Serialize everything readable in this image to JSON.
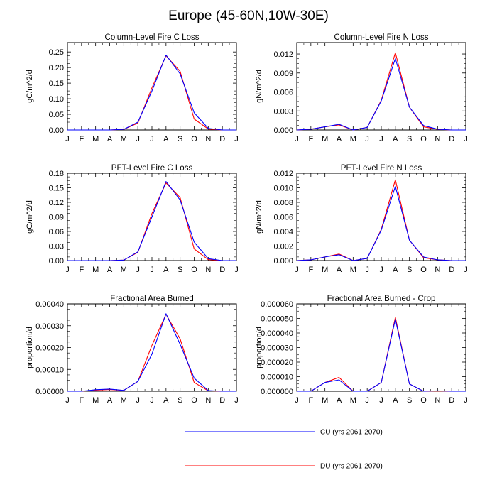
{
  "main_title": "Europe (45-60N,10W-30E)",
  "colors": {
    "cu": "#0000ff",
    "du": "#ff0000",
    "axis": "#000000"
  },
  "legend": {
    "cu": "CU (yrs 2061-2070)",
    "du": "DU (yrs 2061-2070)"
  },
  "chart_data": [
    {
      "type": "line",
      "title": "Column-Level Fire C Loss",
      "ylabel": "gC/m^2/d",
      "categories": [
        "J",
        "F",
        "M",
        "A",
        "M",
        "J",
        "J",
        "A",
        "S",
        "O",
        "N",
        "D",
        "J"
      ],
      "ylim": [
        0,
        0.28
      ],
      "yticks": [
        "0.00",
        "0.05",
        "0.10",
        "0.15",
        "0.20",
        "0.25"
      ],
      "series": [
        {
          "name": "CU (yrs 2061-2070)",
          "values": [
            0,
            0,
            0,
            0,
            0.002,
            0.025,
            0.125,
            0.24,
            0.18,
            0.055,
            0.005,
            0,
            0
          ]
        },
        {
          "name": "DU (yrs 2061-2070)",
          "values": [
            0,
            0,
            0,
            0,
            0.002,
            0.022,
            0.135,
            0.238,
            0.188,
            0.035,
            0.003,
            0,
            0
          ]
        }
      ]
    },
    {
      "type": "line",
      "title": "Column-Level Fire N Loss",
      "ylabel": "gN/m^2/d",
      "categories": [
        "J",
        "F",
        "M",
        "A",
        "M",
        "J",
        "J",
        "A",
        "S",
        "O",
        "N",
        "D",
        "J"
      ],
      "ylim": [
        0,
        0.0138
      ],
      "yticks": [
        "0.000",
        "0.003",
        "0.006",
        "0.009",
        "0.012"
      ],
      "series": [
        {
          "name": "CU (yrs 2061-2070)",
          "values": [
            0,
            0.00012,
            0.0005,
            0.0009,
            0,
            0.0004,
            0.0046,
            0.0113,
            0.0036,
            0.0007,
            0.00012,
            0,
            0
          ]
        },
        {
          "name": "DU (yrs 2061-2070)",
          "values": [
            0,
            0.00012,
            0.0005,
            0.0008,
            0,
            0.0004,
            0.0047,
            0.0122,
            0.0036,
            0.0005,
            0.0001,
            0,
            0
          ]
        }
      ]
    },
    {
      "type": "line",
      "title": "PFT-Level Fire C Loss",
      "ylabel": "gC/m^2/d",
      "categories": [
        "J",
        "F",
        "M",
        "A",
        "M",
        "J",
        "J",
        "A",
        "S",
        "O",
        "N",
        "D",
        "J"
      ],
      "ylim": [
        0,
        0.18
      ],
      "yticks": [
        "0.00",
        "0.03",
        "0.06",
        "0.09",
        "0.12",
        "0.15",
        "0.18"
      ],
      "series": [
        {
          "name": "CU (yrs 2061-2070)",
          "values": [
            0,
            0,
            0,
            0,
            0.001,
            0.018,
            0.09,
            0.163,
            0.125,
            0.038,
            0.004,
            0,
            0
          ]
        },
        {
          "name": "DU (yrs 2061-2070)",
          "values": [
            0,
            0,
            0,
            0,
            0.001,
            0.017,
            0.097,
            0.16,
            0.13,
            0.024,
            0.002,
            0,
            0
          ]
        }
      ]
    },
    {
      "type": "line",
      "title": "PFT-Level Fire N Loss",
      "ylabel": "gN/m^2/d",
      "categories": [
        "J",
        "F",
        "M",
        "A",
        "M",
        "J",
        "J",
        "A",
        "S",
        "O",
        "N",
        "D",
        "J"
      ],
      "ylim": [
        0,
        0.012
      ],
      "yticks": [
        "0.000",
        "0.002",
        "0.004",
        "0.006",
        "0.008",
        "0.010",
        "0.012"
      ],
      "series": [
        {
          "name": "CU (yrs 2061-2070)",
          "values": [
            0,
            0.0001,
            0.0005,
            0.0008,
            0,
            0.0003,
            0.0042,
            0.0102,
            0.0028,
            0.0005,
            0.0001,
            0,
            0
          ]
        },
        {
          "name": "DU (yrs 2061-2070)",
          "values": [
            0,
            0.0001,
            0.0005,
            0.0009,
            0,
            0.0003,
            0.0043,
            0.0111,
            0.0028,
            0.0004,
            0.0001,
            0,
            0
          ]
        }
      ]
    },
    {
      "type": "line",
      "title": "Fractional Area Burned",
      "ylabel": "proportion/d",
      "categories": [
        "J",
        "F",
        "M",
        "A",
        "M",
        "J",
        "J",
        "A",
        "S",
        "O",
        "N",
        "D",
        "J"
      ],
      "ylim": [
        0,
        0.0004
      ],
      "yticks": [
        "0.00000",
        "0.00010",
        "0.00020",
        "0.00030",
        "0.00040"
      ],
      "series": [
        {
          "name": "CU (yrs 2061-2070)",
          "values": [
            0,
            0,
            7e-06,
            1e-05,
            4e-06,
            4.5e-05,
            0.00017,
            0.000355,
            0.000215,
            6e-05,
            3e-06,
            0,
            0
          ]
        },
        {
          "name": "DU (yrs 2061-2070)",
          "values": [
            0,
            0,
            5e-06,
            8e-06,
            4e-06,
            4.5e-05,
            0.00021,
            0.000352,
            0.00024,
            4e-05,
            2e-06,
            0,
            0
          ]
        }
      ]
    },
    {
      "type": "line",
      "title": "Fractional Area Burned - Crop",
      "ylabel": "proportion/d",
      "categories": [
        "J",
        "F",
        "M",
        "A",
        "M",
        "J",
        "J",
        "A",
        "S",
        "O",
        "N",
        "D",
        "J"
      ],
      "ylim": [
        0,
        6e-05
      ],
      "yticks": [
        "0.000000",
        "0.000010",
        "0.000020",
        "0.000030",
        "0.000040",
        "0.000050",
        "0.000060"
      ],
      "series": [
        {
          "name": "CU (yrs 2061-2070)",
          "values": [
            0,
            0,
            6e-06,
            7.8e-06,
            0,
            0,
            6e-06,
            4.95e-05,
            5e-06,
            0,
            3e-07,
            0,
            0
          ]
        },
        {
          "name": "DU (yrs 2061-2070)",
          "values": [
            0,
            0,
            6e-06,
            9.5e-06,
            0,
            0,
            6e-06,
            5.08e-05,
            5e-06,
            0,
            2e-07,
            0,
            0
          ]
        }
      ]
    }
  ]
}
